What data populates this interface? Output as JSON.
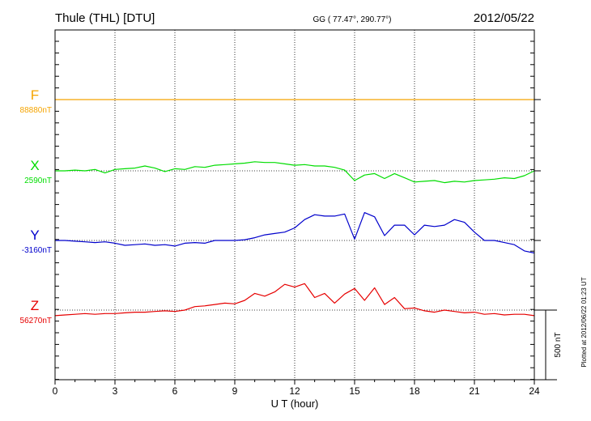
{
  "header": {
    "station": "Thule (THL)  [DTU]",
    "coords": "GG ( 77.47°, 290.77°)",
    "date": "2012/05/22"
  },
  "footer": {
    "plotted_note": "Plotted at 2012/06/22 01:23 UT",
    "scale_label": "500 nT"
  },
  "chart_data": {
    "type": "line",
    "title": "Thule (THL)  [DTU]",
    "xlabel": "U T (hour)",
    "xlim": [
      0,
      24
    ],
    "xticks": [
      "0",
      "3",
      "6",
      "9",
      "12",
      "15",
      "18",
      "21",
      "24"
    ],
    "grid": true,
    "scale_bar_nT": 500,
    "series": [
      {
        "name": "F",
        "baseline_label": "88880nT",
        "color": "#f5a400",
        "x": [
          0,
          24
        ],
        "y": [
          0,
          0
        ]
      },
      {
        "name": "X",
        "baseline_label": "2590nT",
        "color": "#00dd00",
        "x": [
          0,
          0.5,
          1,
          1.5,
          2,
          2.5,
          3,
          3.5,
          4,
          4.5,
          5,
          5.5,
          6,
          6.5,
          7,
          7.5,
          8,
          8.5,
          9,
          9.5,
          10,
          10.5,
          11,
          11.5,
          12,
          12.5,
          13,
          13.5,
          14,
          14.5,
          15,
          15.5,
          16,
          16.5,
          17,
          17.5,
          18,
          18.5,
          19,
          19.5,
          20,
          20.5,
          21,
          21.5,
          22,
          22.5,
          23,
          23.5,
          24
        ],
        "y": [
          0,
          0,
          5,
          0,
          10,
          -15,
          10,
          15,
          20,
          35,
          20,
          -5,
          15,
          10,
          30,
          25,
          40,
          45,
          50,
          55,
          65,
          60,
          60,
          50,
          40,
          45,
          35,
          35,
          25,
          5,
          -70,
          -30,
          -20,
          -55,
          -20,
          -50,
          -80,
          -75,
          -70,
          -85,
          -75,
          -80,
          -70,
          -65,
          -60,
          -50,
          -55,
          -35,
          0
        ]
      },
      {
        "name": "Y",
        "baseline_label": "-3160nT",
        "color": "#0000cc",
        "x": [
          0,
          0.5,
          1,
          1.5,
          2,
          2.5,
          3,
          3.5,
          4,
          4.5,
          5,
          5.5,
          6,
          6.5,
          7,
          7.5,
          8,
          8.5,
          9,
          9.5,
          10,
          10.5,
          11,
          11.5,
          12,
          12.5,
          13,
          13.5,
          14,
          14.5,
          15,
          15.5,
          16,
          16.5,
          17,
          17.5,
          18,
          18.5,
          19,
          19.5,
          20,
          20.5,
          21,
          21.5,
          22,
          22.5,
          23,
          23.5,
          24
        ],
        "y": [
          0,
          0,
          -5,
          -10,
          -15,
          -10,
          -20,
          -35,
          -30,
          -25,
          -35,
          -30,
          -40,
          -20,
          -15,
          -20,
          0,
          0,
          0,
          5,
          20,
          40,
          50,
          60,
          90,
          150,
          185,
          175,
          175,
          190,
          10,
          200,
          170,
          35,
          110,
          110,
          40,
          110,
          100,
          110,
          150,
          130,
          60,
          0,
          0,
          -15,
          -30,
          -75,
          -90
        ]
      },
      {
        "name": "Z",
        "baseline_label": "56270nT",
        "color": "#e60000",
        "x": [
          0,
          0.5,
          1,
          1.5,
          2,
          2.5,
          3,
          3.5,
          4,
          4.5,
          5,
          5.5,
          6,
          6.5,
          7,
          7.5,
          8,
          8.5,
          9,
          9.5,
          10,
          10.5,
          11,
          11.5,
          12,
          12.5,
          13,
          13.5,
          14,
          14.5,
          15,
          15.5,
          16,
          16.5,
          17,
          17.5,
          18,
          18.5,
          19,
          19.5,
          20,
          20.5,
          21,
          21.5,
          22,
          22.5,
          23,
          23.5,
          24
        ],
        "y": [
          -40,
          -35,
          -30,
          -25,
          -30,
          -25,
          -25,
          -20,
          -15,
          -15,
          -10,
          -5,
          -10,
          0,
          25,
          30,
          40,
          50,
          45,
          70,
          120,
          100,
          130,
          185,
          165,
          190,
          90,
          120,
          50,
          115,
          155,
          70,
          160,
          40,
          90,
          10,
          15,
          -5,
          -15,
          0,
          -10,
          -20,
          -15,
          -30,
          -25,
          -35,
          -30,
          -30,
          -40
        ]
      }
    ]
  }
}
